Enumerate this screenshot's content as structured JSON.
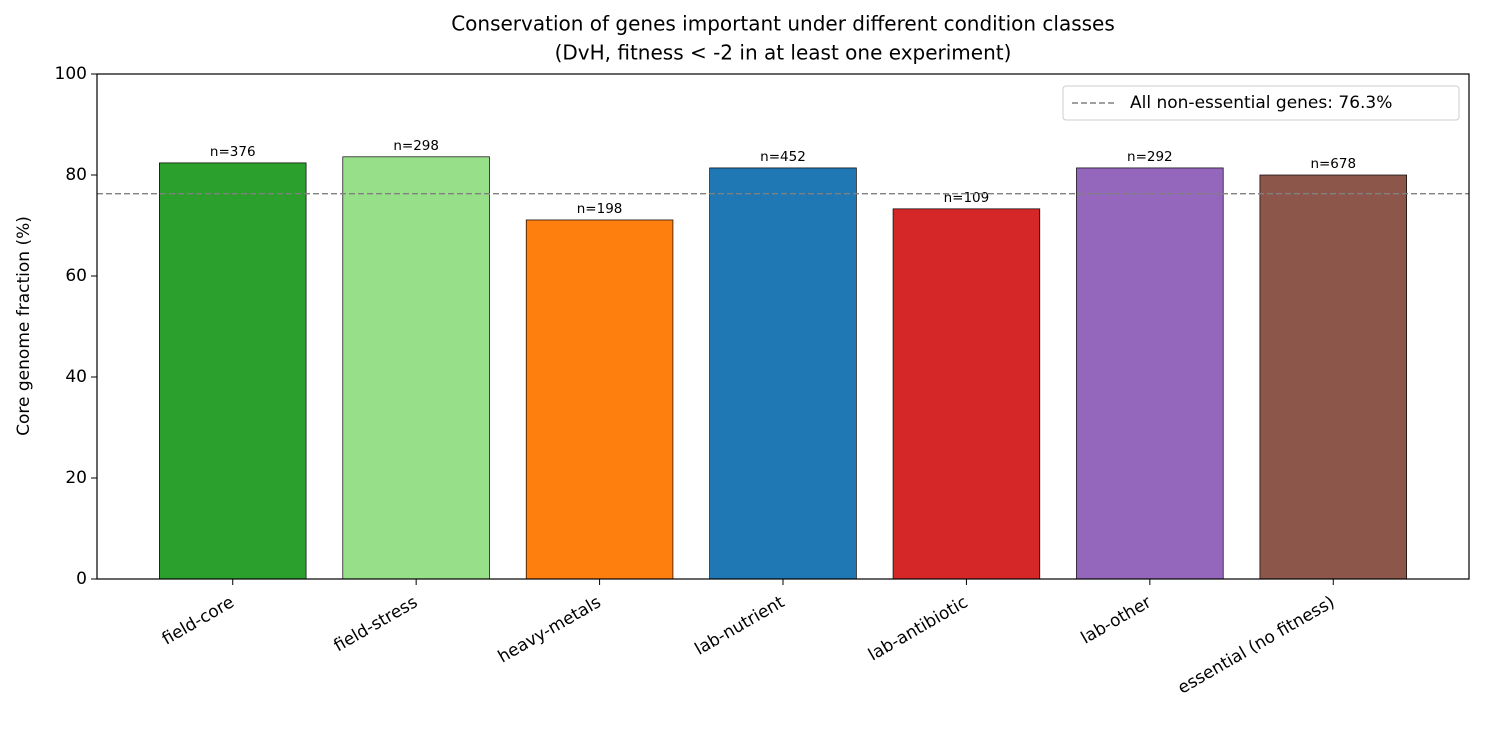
{
  "chart_data": {
    "type": "bar",
    "title": [
      "Conservation of genes important under different condition classes",
      "(DvH, fitness < -2 in at least one experiment)"
    ],
    "y_label": "Core genome fraction (%)",
    "categories": [
      "field-core",
      "field-stress",
      "heavy-metals",
      "lab-nutrient",
      "lab-antibiotic",
      "lab-other",
      "essential (no fitness)"
    ],
    "values": [
      82.4,
      83.6,
      71.1,
      81.4,
      73.3,
      81.4,
      80.0
    ],
    "bar_labels": [
      "n=376",
      "n=298",
      "n=198",
      "n=452",
      "n=109",
      "n=292",
      "n=678"
    ],
    "colors": [
      "#2ca02c",
      "#98df8a",
      "#ff7f0e",
      "#1f77b4",
      "#d62728",
      "#9467bd",
      "#8c564b"
    ],
    "reference_line": {
      "value": 76.3,
      "label": "All non-essential genes: 76.3%",
      "color": "#808080"
    },
    "ylim": [
      0,
      100
    ],
    "yticks": [
      0,
      20,
      40,
      60,
      80,
      100
    ],
    "legend": "upper right"
  }
}
